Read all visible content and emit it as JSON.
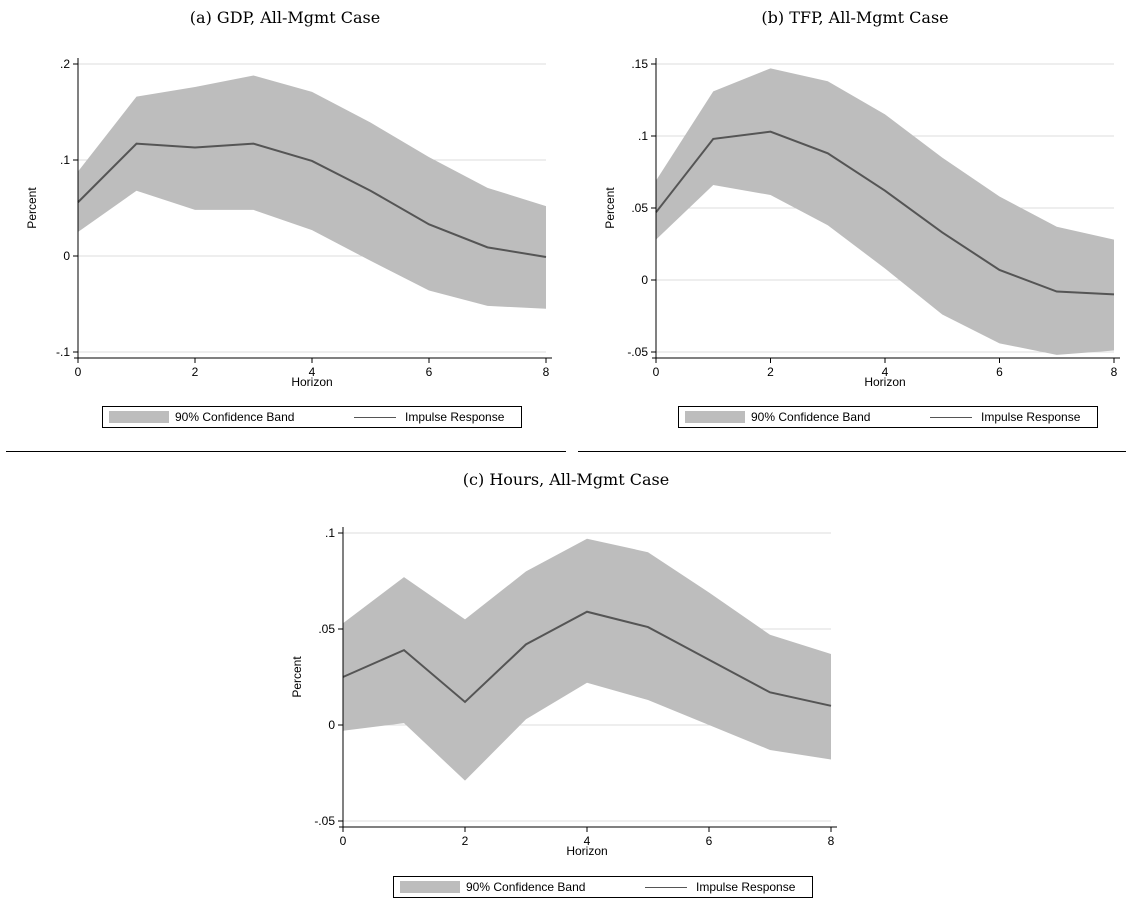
{
  "colors": {
    "band": "#bdbdbd",
    "line": "#555555",
    "grid": "#dddddd",
    "axis": "#000000"
  },
  "legend": {
    "band_label": "90% Confidence Band",
    "line_label": "Impulse Response"
  },
  "chart_data": [
    {
      "id": "a",
      "type": "area",
      "title": "(a) GDP, All-Mgmt Case",
      "xlabel": "Horizon",
      "ylabel": "Percent",
      "xlim": [
        0,
        8
      ],
      "ylim": [
        -0.1,
        0.2
      ],
      "xticks": [
        0,
        2,
        4,
        6,
        8
      ],
      "xtick_labels": [
        "0",
        "2",
        "4",
        "6",
        "8"
      ],
      "yticks": [
        -0.1,
        0,
        0.1,
        0.2
      ],
      "ytick_labels": [
        "-.1",
        "0",
        ".1",
        ".2"
      ],
      "grid": true,
      "legend_position": "bottom",
      "x": [
        0,
        1,
        2,
        3,
        4,
        5,
        6,
        7,
        8
      ],
      "series": [
        {
          "name": "Impulse Response",
          "values": [
            0.056,
            0.117,
            0.113,
            0.117,
            0.099,
            0.068,
            0.033,
            0.009,
            -0.001
          ]
        },
        {
          "name": "90% Confidence Band",
          "lower": [
            0.025,
            0.068,
            0.048,
            0.048,
            0.027,
            -0.005,
            -0.036,
            -0.052,
            -0.055
          ],
          "upper": [
            0.088,
            0.166,
            0.176,
            0.188,
            0.171,
            0.139,
            0.103,
            0.071,
            0.052
          ]
        }
      ]
    },
    {
      "id": "b",
      "type": "area",
      "title": "(b) TFP, All-Mgmt Case",
      "xlabel": "Horizon",
      "ylabel": "Percent",
      "xlim": [
        0,
        8
      ],
      "ylim": [
        -0.05,
        0.15
      ],
      "xticks": [
        0,
        2,
        4,
        6,
        8
      ],
      "xtick_labels": [
        "0",
        "2",
        "4",
        "6",
        "8"
      ],
      "yticks": [
        -0.05,
        0,
        0.05,
        0.1,
        0.15
      ],
      "ytick_labels": [
        "-.05",
        "0",
        ".05",
        ".1",
        ".15"
      ],
      "grid": true,
      "legend_position": "bottom",
      "x": [
        0,
        1,
        2,
        3,
        4,
        5,
        6,
        7,
        8
      ],
      "series": [
        {
          "name": "Impulse Response",
          "values": [
            0.047,
            0.098,
            0.103,
            0.088,
            0.062,
            0.033,
            0.007,
            -0.008,
            -0.01
          ]
        },
        {
          "name": "90% Confidence Band",
          "lower": [
            0.028,
            0.066,
            0.059,
            0.038,
            0.008,
            -0.024,
            -0.044,
            -0.052,
            -0.049
          ],
          "upper": [
            0.069,
            0.131,
            0.147,
            0.138,
            0.115,
            0.085,
            0.058,
            0.037,
            0.028
          ]
        }
      ]
    },
    {
      "id": "c",
      "type": "area",
      "title": "(c) Hours, All-Mgmt Case",
      "xlabel": "Horizon",
      "ylabel": "Percent",
      "xlim": [
        0,
        8
      ],
      "ylim": [
        -0.05,
        0.1
      ],
      "xticks": [
        0,
        2,
        4,
        6,
        8
      ],
      "xtick_labels": [
        "0",
        "2",
        "4",
        "6",
        "8"
      ],
      "yticks": [
        -0.05,
        0,
        0.05,
        0.1
      ],
      "ytick_labels": [
        "-.05",
        "0",
        ".05",
        ".1"
      ],
      "grid": true,
      "legend_position": "bottom",
      "x": [
        0,
        1,
        2,
        3,
        4,
        5,
        6,
        7,
        8
      ],
      "series": [
        {
          "name": "Impulse Response",
          "values": [
            0.025,
            0.039,
            0.012,
            0.042,
            0.059,
            0.051,
            0.034,
            0.017,
            0.01
          ]
        },
        {
          "name": "90% Confidence Band",
          "lower": [
            -0.003,
            0.001,
            -0.029,
            0.003,
            0.022,
            0.013,
            0.0,
            -0.013,
            -0.018
          ],
          "upper": [
            0.053,
            0.077,
            0.055,
            0.08,
            0.097,
            0.09,
            0.069,
            0.047,
            0.037
          ]
        }
      ]
    }
  ]
}
